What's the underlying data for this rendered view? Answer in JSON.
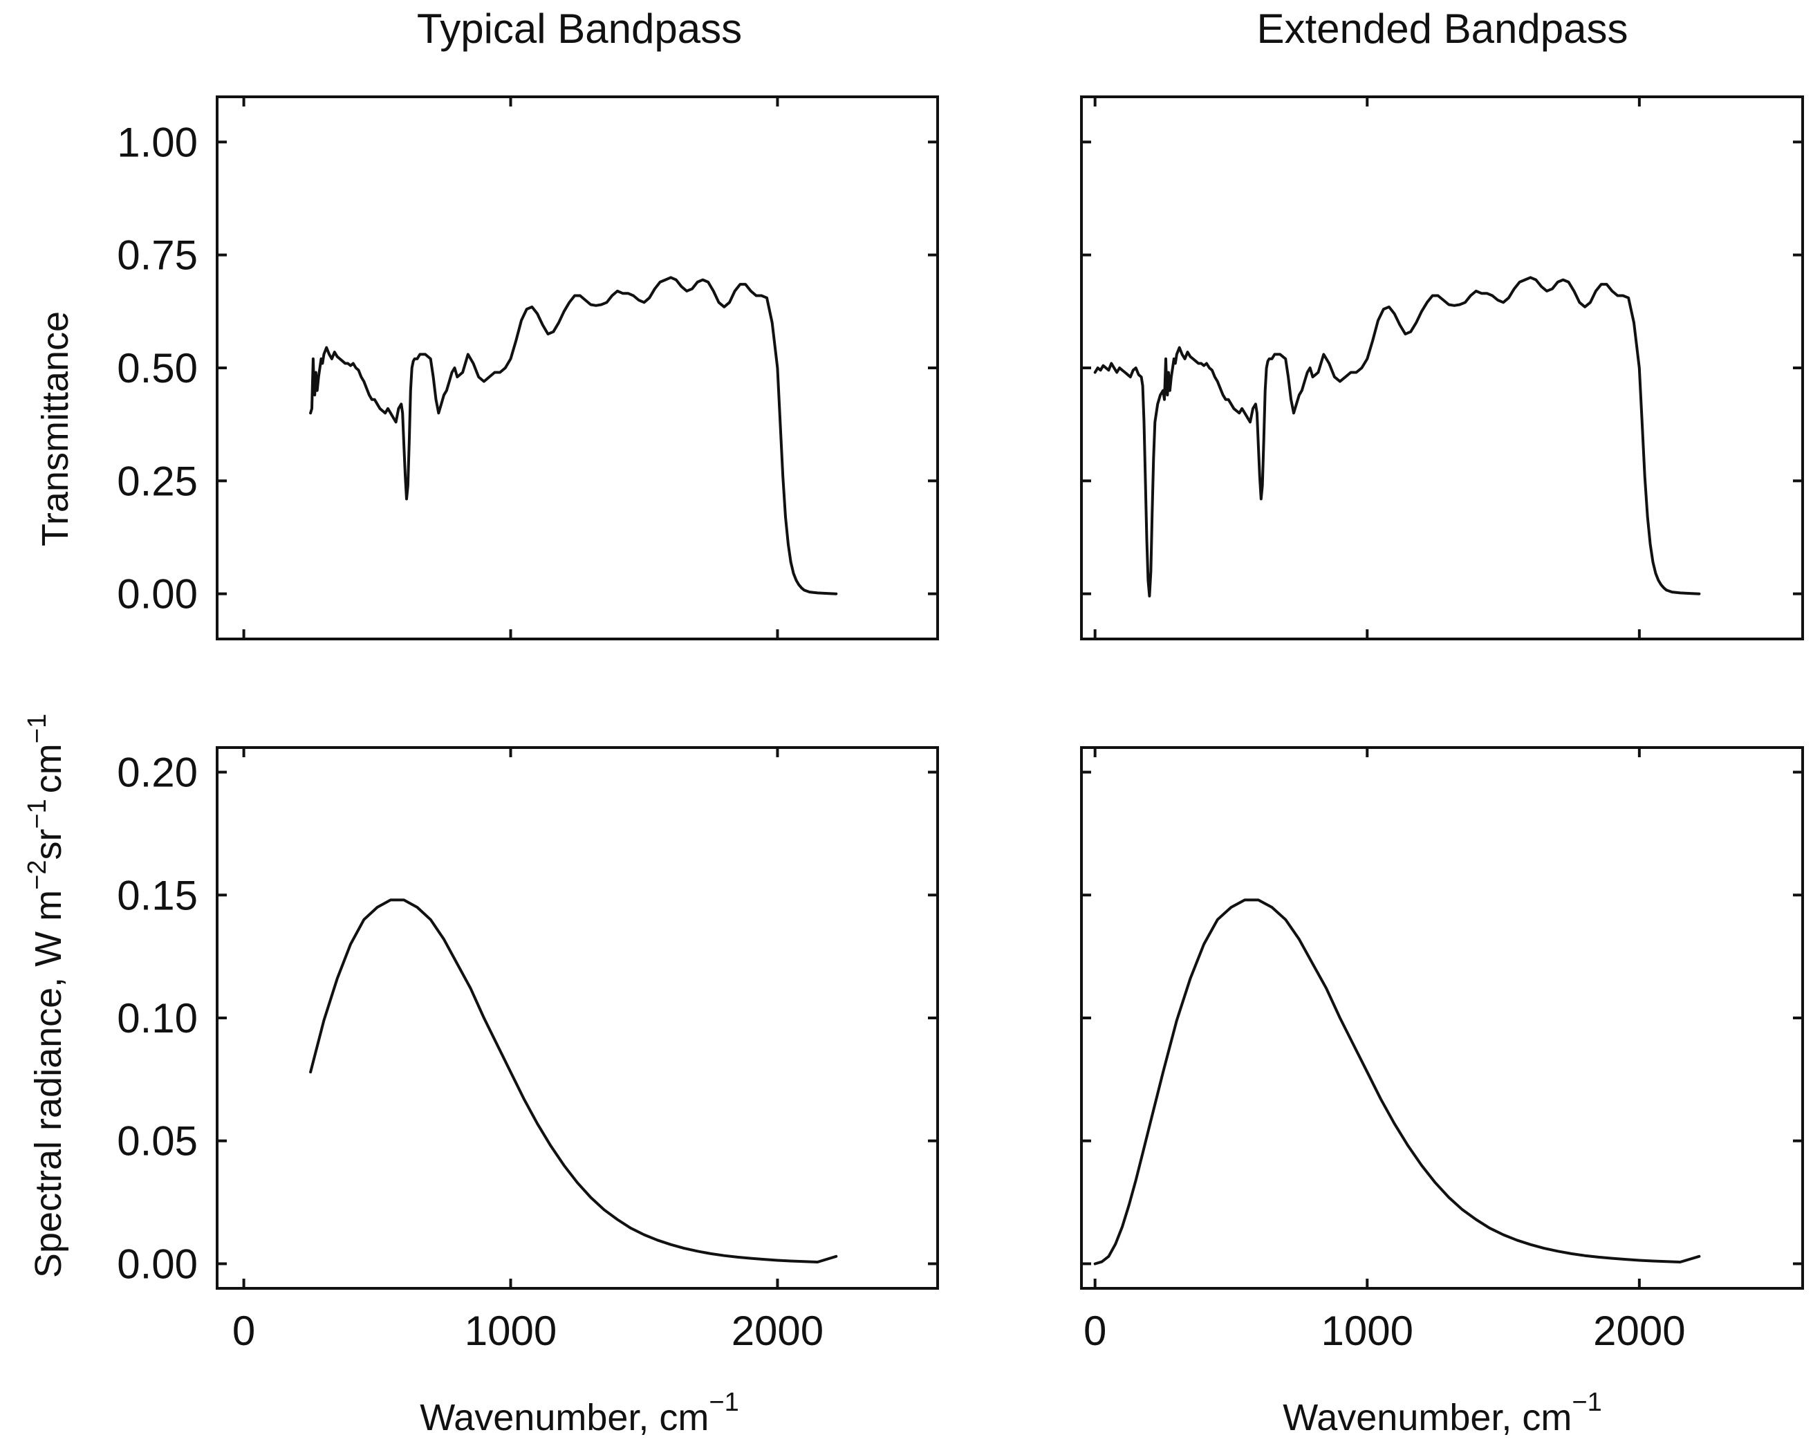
{
  "chart_data": [
    {
      "id": "tl",
      "type": "line",
      "title": "Typical Bandpass",
      "xlabel": "",
      "ylabel": "Transmittance",
      "xlim": [
        -100,
        2600
      ],
      "ylim": [
        -0.1,
        1.1
      ],
      "yticks": [
        "0.00",
        "0.25",
        "0.50",
        "0.75",
        "1.00"
      ],
      "xticks": [],
      "series": [
        {
          "name": "transmittance",
          "x": [
            250,
            255,
            260,
            263,
            266,
            270,
            275,
            280,
            285,
            290,
            295,
            300,
            310,
            320,
            330,
            340,
            350,
            360,
            370,
            380,
            390,
            400,
            410,
            420,
            430,
            440,
            450,
            460,
            470,
            480,
            490,
            500,
            510,
            520,
            530,
            540,
            550,
            560,
            570,
            580,
            590,
            595,
            600,
            605,
            610,
            615,
            620,
            625,
            630,
            635,
            640,
            645,
            650,
            660,
            680,
            700,
            710,
            720,
            730,
            740,
            750,
            760,
            770,
            780,
            790,
            800,
            820,
            840,
            860,
            880,
            900,
            920,
            940,
            960,
            980,
            1000,
            1020,
            1040,
            1060,
            1080,
            1100,
            1120,
            1140,
            1160,
            1180,
            1200,
            1220,
            1240,
            1260,
            1280,
            1300,
            1320,
            1340,
            1360,
            1380,
            1400,
            1420,
            1440,
            1460,
            1480,
            1500,
            1520,
            1540,
            1560,
            1580,
            1600,
            1620,
            1640,
            1660,
            1680,
            1700,
            1720,
            1740,
            1760,
            1780,
            1800,
            1820,
            1840,
            1860,
            1880,
            1900,
            1920,
            1940,
            1960,
            1980,
            2000,
            2010,
            2020,
            2030,
            2040,
            2050,
            2060,
            2070,
            2080,
            2090,
            2100,
            2120,
            2150,
            2180,
            2220
          ],
          "y": [
            0.4,
            0.41,
            0.52,
            0.46,
            0.44,
            0.49,
            0.45,
            0.48,
            0.5,
            0.52,
            0.51,
            0.53,
            0.545,
            0.53,
            0.52,
            0.535,
            0.525,
            0.52,
            0.515,
            0.51,
            0.51,
            0.505,
            0.51,
            0.5,
            0.495,
            0.48,
            0.47,
            0.455,
            0.44,
            0.43,
            0.43,
            0.42,
            0.41,
            0.405,
            0.4,
            0.41,
            0.4,
            0.39,
            0.38,
            0.41,
            0.42,
            0.4,
            0.33,
            0.26,
            0.21,
            0.24,
            0.34,
            0.45,
            0.5,
            0.515,
            0.52,
            0.52,
            0.52,
            0.53,
            0.53,
            0.52,
            0.48,
            0.43,
            0.4,
            0.42,
            0.44,
            0.45,
            0.47,
            0.49,
            0.5,
            0.48,
            0.49,
            0.53,
            0.51,
            0.48,
            0.47,
            0.48,
            0.49,
            0.49,
            0.5,
            0.52,
            0.56,
            0.605,
            0.63,
            0.635,
            0.62,
            0.595,
            0.575,
            0.58,
            0.6,
            0.625,
            0.645,
            0.66,
            0.66,
            0.65,
            0.64,
            0.638,
            0.64,
            0.645,
            0.66,
            0.67,
            0.665,
            0.665,
            0.66,
            0.65,
            0.645,
            0.655,
            0.675,
            0.69,
            0.695,
            0.7,
            0.695,
            0.68,
            0.67,
            0.675,
            0.69,
            0.695,
            0.69,
            0.67,
            0.645,
            0.635,
            0.645,
            0.67,
            0.685,
            0.685,
            0.67,
            0.66,
            0.66,
            0.655,
            0.6,
            0.5,
            0.38,
            0.26,
            0.17,
            0.11,
            0.07,
            0.045,
            0.03,
            0.02,
            0.013,
            0.008,
            0.004,
            0.002,
            0.001,
            0.0
          ]
        }
      ]
    },
    {
      "id": "tr",
      "type": "line",
      "title": "Extended Bandpass",
      "xlabel": "",
      "ylabel": "",
      "xlim": [
        -50,
        2600
      ],
      "ylim": [
        -0.1,
        1.1
      ],
      "yticks": [],
      "xticks": [],
      "series": [
        {
          "name": "transmittance",
          "x": [
            0,
            10,
            20,
            30,
            40,
            50,
            60,
            70,
            80,
            90,
            100,
            110,
            120,
            130,
            140,
            150,
            160,
            170,
            175,
            180,
            185,
            190,
            195,
            200,
            205,
            210,
            215,
            220,
            230,
            240,
            250,
            255,
            260,
            263,
            266,
            270,
            275,
            280,
            285,
            290,
            295,
            300,
            310,
            320,
            330,
            340,
            350,
            360,
            370,
            380,
            390,
            400,
            410,
            420,
            430,
            440,
            450,
            460,
            470,
            480,
            490,
            500,
            510,
            520,
            530,
            540,
            550,
            560,
            570,
            580,
            590,
            595,
            600,
            605,
            610,
            615,
            620,
            625,
            630,
            635,
            640,
            645,
            650,
            660,
            680,
            700,
            710,
            720,
            730,
            740,
            750,
            760,
            770,
            780,
            790,
            800,
            820,
            840,
            860,
            880,
            900,
            920,
            940,
            960,
            980,
            1000,
            1020,
            1040,
            1060,
            1080,
            1100,
            1120,
            1140,
            1160,
            1180,
            1200,
            1220,
            1240,
            1260,
            1280,
            1300,
            1320,
            1340,
            1360,
            1380,
            1400,
            1420,
            1440,
            1460,
            1480,
            1500,
            1520,
            1540,
            1560,
            1580,
            1600,
            1620,
            1640,
            1660,
            1680,
            1700,
            1720,
            1740,
            1760,
            1780,
            1800,
            1820,
            1840,
            1860,
            1880,
            1900,
            1920,
            1940,
            1960,
            1980,
            2000,
            2010,
            2020,
            2030,
            2040,
            2050,
            2060,
            2070,
            2080,
            2090,
            2100,
            2120,
            2150,
            2180,
            2220
          ],
          "y": [
            0.49,
            0.5,
            0.495,
            0.505,
            0.5,
            0.495,
            0.51,
            0.5,
            0.49,
            0.5,
            0.495,
            0.49,
            0.485,
            0.48,
            0.495,
            0.5,
            0.485,
            0.48,
            0.46,
            0.38,
            0.25,
            0.12,
            0.03,
            -0.005,
            0.05,
            0.18,
            0.3,
            0.38,
            0.42,
            0.44,
            0.45,
            0.43,
            0.52,
            0.46,
            0.44,
            0.49,
            0.45,
            0.48,
            0.5,
            0.52,
            0.51,
            0.53,
            0.545,
            0.53,
            0.52,
            0.535,
            0.525,
            0.52,
            0.515,
            0.51,
            0.51,
            0.505,
            0.51,
            0.5,
            0.495,
            0.48,
            0.47,
            0.455,
            0.44,
            0.43,
            0.43,
            0.42,
            0.41,
            0.405,
            0.4,
            0.41,
            0.4,
            0.39,
            0.38,
            0.41,
            0.42,
            0.4,
            0.33,
            0.26,
            0.21,
            0.24,
            0.34,
            0.45,
            0.5,
            0.515,
            0.52,
            0.52,
            0.52,
            0.53,
            0.53,
            0.52,
            0.48,
            0.43,
            0.4,
            0.42,
            0.44,
            0.45,
            0.47,
            0.49,
            0.5,
            0.48,
            0.49,
            0.53,
            0.51,
            0.48,
            0.47,
            0.48,
            0.49,
            0.49,
            0.5,
            0.52,
            0.56,
            0.605,
            0.63,
            0.635,
            0.62,
            0.595,
            0.575,
            0.58,
            0.6,
            0.625,
            0.645,
            0.66,
            0.66,
            0.65,
            0.64,
            0.638,
            0.64,
            0.645,
            0.66,
            0.67,
            0.665,
            0.665,
            0.66,
            0.65,
            0.645,
            0.655,
            0.675,
            0.69,
            0.695,
            0.7,
            0.695,
            0.68,
            0.67,
            0.675,
            0.69,
            0.695,
            0.69,
            0.67,
            0.645,
            0.635,
            0.645,
            0.67,
            0.685,
            0.685,
            0.67,
            0.66,
            0.66,
            0.655,
            0.6,
            0.5,
            0.38,
            0.26,
            0.17,
            0.11,
            0.07,
            0.045,
            0.03,
            0.02,
            0.013,
            0.008,
            0.004,
            0.002,
            0.001,
            0.0
          ]
        }
      ]
    },
    {
      "id": "bl",
      "type": "line",
      "title": "",
      "xlabel": "Wavenumber, cm",
      "xlabel_sup": "−1",
      "ylabel": "Spectral radiance, W m",
      "ylabel_parts": [
        "Spectral radiance, W m",
        "−2",
        "sr",
        "−1",
        "cm",
        "−1"
      ],
      "xlim": [
        -100,
        2600
      ],
      "ylim": [
        -0.01,
        0.21
      ],
      "yticks": [
        "0.00",
        "0.05",
        "0.10",
        "0.15",
        "0.20"
      ],
      "xticks": [
        "0",
        "1000",
        "2000"
      ],
      "series": [
        {
          "name": "radiance",
          "x": [
            250,
            300,
            350,
            400,
            450,
            500,
            550,
            600,
            650,
            700,
            750,
            800,
            850,
            900,
            950,
            1000,
            1050,
            1100,
            1150,
            1200,
            1250,
            1300,
            1350,
            1400,
            1450,
            1500,
            1550,
            1600,
            1650,
            1700,
            1750,
            1800,
            1850,
            1900,
            1950,
            2000,
            2050,
            2100,
            2150,
            2220
          ],
          "y": [
            0.078,
            0.099,
            0.116,
            0.13,
            0.14,
            0.145,
            0.148,
            0.148,
            0.145,
            0.14,
            0.132,
            0.122,
            0.112,
            0.1,
            0.089,
            0.078,
            0.067,
            0.057,
            0.048,
            0.04,
            0.033,
            0.027,
            0.022,
            0.018,
            0.0145,
            0.0118,
            0.0096,
            0.0078,
            0.0063,
            0.0051,
            0.0041,
            0.0033,
            0.0027,
            0.0022,
            0.0018,
            0.0014,
            0.0011,
            0.0009,
            0.0007,
            0.003
          ]
        }
      ]
    },
    {
      "id": "br",
      "type": "line",
      "title": "",
      "xlabel": "Wavenumber, cm",
      "xlabel_sup": "−1",
      "ylabel": "",
      "xlim": [
        -50,
        2600
      ],
      "ylim": [
        -0.01,
        0.21
      ],
      "yticks": [],
      "xticks": [
        "0",
        "1000",
        "2000"
      ],
      "series": [
        {
          "name": "radiance",
          "x": [
            0,
            25,
            50,
            75,
            100,
            125,
            150,
            175,
            200,
            250,
            300,
            350,
            400,
            450,
            500,
            550,
            600,
            650,
            700,
            750,
            800,
            850,
            900,
            950,
            1000,
            1050,
            1100,
            1150,
            1200,
            1250,
            1300,
            1350,
            1400,
            1450,
            1500,
            1550,
            1600,
            1650,
            1700,
            1750,
            1800,
            1850,
            1900,
            1950,
            2000,
            2050,
            2100,
            2150,
            2220
          ],
          "y": [
            0.0,
            0.0008,
            0.003,
            0.008,
            0.015,
            0.024,
            0.034,
            0.045,
            0.056,
            0.078,
            0.099,
            0.116,
            0.13,
            0.14,
            0.145,
            0.148,
            0.148,
            0.145,
            0.14,
            0.132,
            0.122,
            0.112,
            0.1,
            0.089,
            0.078,
            0.067,
            0.057,
            0.048,
            0.04,
            0.033,
            0.027,
            0.022,
            0.018,
            0.0145,
            0.0118,
            0.0096,
            0.0078,
            0.0063,
            0.0051,
            0.0041,
            0.0033,
            0.0027,
            0.0022,
            0.0018,
            0.0014,
            0.0011,
            0.0009,
            0.0007,
            0.003
          ]
        }
      ]
    }
  ]
}
